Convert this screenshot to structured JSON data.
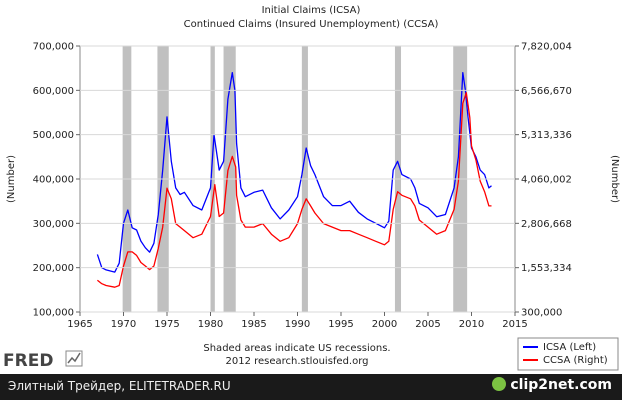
{
  "chart_data": {
    "type": "line",
    "title": "Initial Claims (ICSA)",
    "subtitle": "Continued Claims (Insured Unemployment) (CCSA)",
    "ylabel_left": "(Number)",
    "ylabel_right": "(Number)",
    "xlim": [
      1965,
      2015
    ],
    "ylim_left": [
      100000,
      700000
    ],
    "ylim_right": [
      300000,
      7820004
    ],
    "x_ticks": [
      "1965",
      "1970",
      "1975",
      "1980",
      "1985",
      "1990",
      "1995",
      "2000",
      "2005",
      "2010",
      "2015"
    ],
    "y_ticks_left": [
      "100,000",
      "200,000",
      "300,000",
      "400,000",
      "500,000",
      "600,000",
      "700,000"
    ],
    "y_ticks_right": [
      "300,000",
      "1,553,334",
      "2,806,668",
      "4,060,002",
      "5,313,336",
      "6,566,670",
      "7,820,004"
    ],
    "recessions": [
      [
        1969.9,
        1970.9
      ],
      [
        1973.9,
        1975.2
      ],
      [
        1980.0,
        1980.5
      ],
      [
        1981.5,
        1982.9
      ],
      [
        1990.5,
        1991.2
      ],
      [
        2001.2,
        2001.9
      ],
      [
        2007.9,
        2009.5
      ]
    ],
    "notes": [
      "Shaded areas indicate US recessions.",
      "2012 research.stlouisfed.org"
    ],
    "series": [
      {
        "name": "ICSA (Left)",
        "color": "#0000ff",
        "axis": "left",
        "x": [
          1967,
          1967.5,
          1968,
          1969,
          1969.5,
          1970,
          1970.5,
          1971,
          1971.5,
          1972,
          1972.5,
          1973,
          1973.5,
          1974,
          1974.5,
          1975,
          1975.5,
          1976,
          1976.5,
          1977,
          1978,
          1979,
          1980,
          1980.4,
          1981,
          1981.5,
          1982,
          1982.5,
          1982.8,
          1983,
          1983.5,
          1984,
          1985,
          1986,
          1987,
          1988,
          1989,
          1990,
          1990.5,
          1991,
          1991.5,
          1992,
          1993,
          1994,
          1995,
          1996,
          1997,
          1998,
          1999,
          2000,
          2000.5,
          2001,
          2001.5,
          2002,
          2003,
          2003.5,
          2004,
          2005,
          2006,
          2007,
          2008,
          2008.5,
          2009,
          2009.3,
          2009.6,
          2010,
          2010.5,
          2011,
          2011.5,
          2012,
          2012.3
        ],
        "y": [
          230000,
          200000,
          195000,
          190000,
          210000,
          300000,
          330000,
          290000,
          285000,
          260000,
          245000,
          235000,
          255000,
          320000,
          420000,
          540000,
          440000,
          380000,
          365000,
          370000,
          340000,
          330000,
          380000,
          500000,
          420000,
          440000,
          580000,
          640000,
          600000,
          480000,
          380000,
          360000,
          370000,
          375000,
          335000,
          310000,
          330000,
          360000,
          410000,
          470000,
          430000,
          410000,
          360000,
          340000,
          340000,
          350000,
          325000,
          310000,
          300000,
          290000,
          305000,
          420000,
          440000,
          410000,
          400000,
          380000,
          345000,
          335000,
          315000,
          320000,
          380000,
          450000,
          640000,
          600000,
          540000,
          470000,
          450000,
          420000,
          410000,
          380000,
          385000
        ]
      },
      {
        "name": "CCSA (Right)",
        "color": "#ff0000",
        "axis": "right",
        "x": [
          1967,
          1967.5,
          1968,
          1969,
          1969.5,
          1970,
          1970.5,
          1971,
          1971.5,
          1972,
          1972.5,
          1973,
          1973.5,
          1974,
          1974.5,
          1975,
          1975.5,
          1976,
          1976.5,
          1977,
          1978,
          1979,
          1980,
          1980.5,
          1981,
          1981.5,
          1982,
          1982.5,
          1982.9,
          1983,
          1983.5,
          1984,
          1985,
          1986,
          1987,
          1988,
          1989,
          1990,
          1990.5,
          1991,
          1991.5,
          1992,
          1993,
          1994,
          1995,
          1996,
          1997,
          1998,
          1999,
          2000,
          2000.5,
          2001,
          2001.5,
          2002,
          2003,
          2003.5,
          2004,
          2005,
          2006,
          2007,
          2008,
          2008.5,
          2009,
          2009.4,
          2009.8,
          2010,
          2010.5,
          2011,
          2011.5,
          2012,
          2012.3
        ],
        "y": [
          1200000,
          1100000,
          1050000,
          1000000,
          1050000,
          1600000,
          2000000,
          2000000,
          1900000,
          1700000,
          1600000,
          1500000,
          1600000,
          2100000,
          2700000,
          3800000,
          3500000,
          2800000,
          2700000,
          2600000,
          2400000,
          2500000,
          3000000,
          3900000,
          3000000,
          3100000,
          4300000,
          4700000,
          4400000,
          3600000,
          2900000,
          2700000,
          2700000,
          2800000,
          2500000,
          2300000,
          2400000,
          2800000,
          3200000,
          3500000,
          3300000,
          3100000,
          2800000,
          2700000,
          2600000,
          2600000,
          2500000,
          2400000,
          2300000,
          2200000,
          2300000,
          3200000,
          3700000,
          3600000,
          3500000,
          3300000,
          2900000,
          2700000,
          2500000,
          2600000,
          3200000,
          4000000,
          6200000,
          6500000,
          5800000,
          5000000,
          4600000,
          4000000,
          3700000,
          3300000,
          3300000
        ]
      }
    ]
  },
  "legend": {
    "items": [
      {
        "label": "ICSA (Left)",
        "color": "#0000ff"
      },
      {
        "label": "CCSA (Right)",
        "color": "#ff0000"
      }
    ]
  },
  "branding": {
    "logo": "FRED",
    "logo_icon": "chart-logo-icon",
    "footer_text": "Элитный Трейдер, ELITETRADER.RU",
    "watermark": "clip2net.com"
  },
  "colors": {
    "recession_shade": "#c0c0c0",
    "footer_bg": "#1a1a1a"
  }
}
